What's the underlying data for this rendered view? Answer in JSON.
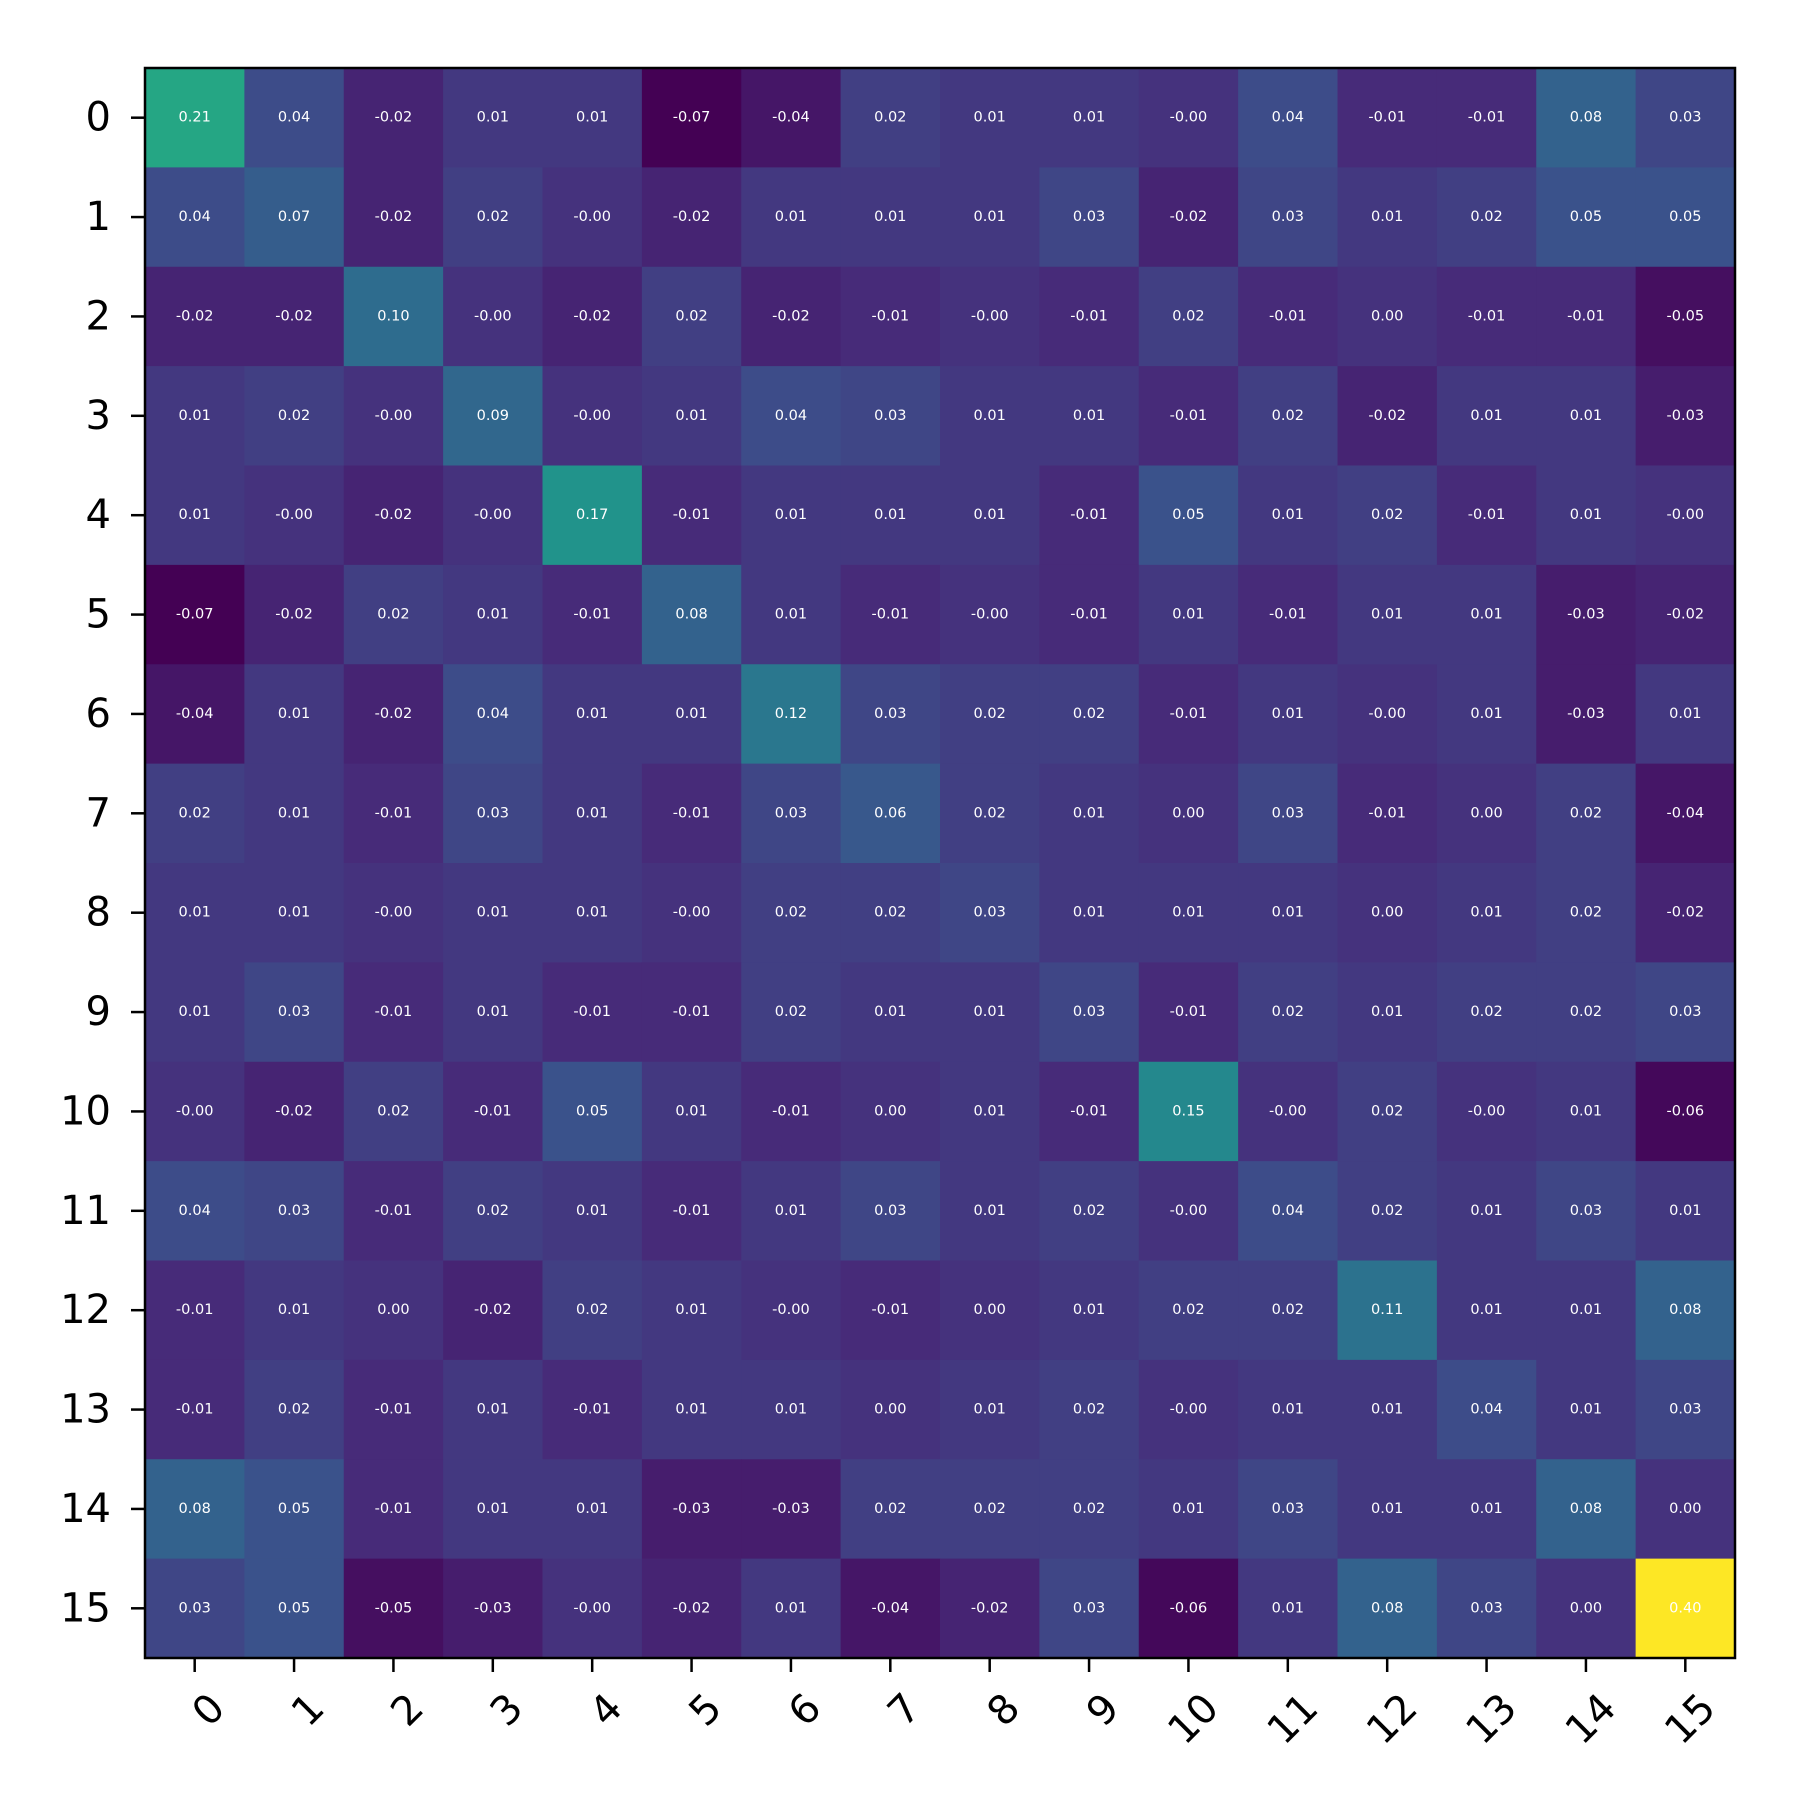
{
  "chart_data": {
    "type": "heatmap",
    "title": "",
    "xlabel": "",
    "ylabel": "",
    "colormap": "viridis",
    "color_range": [
      -0.07,
      0.4
    ],
    "x_tick_labels": [
      "0",
      "1",
      "2",
      "3",
      "4",
      "5",
      "6",
      "7",
      "8",
      "9",
      "10",
      "11",
      "12",
      "13",
      "14",
      "15"
    ],
    "y_tick_labels": [
      "0",
      "1",
      "2",
      "3",
      "4",
      "5",
      "6",
      "7",
      "8",
      "9",
      "10",
      "11",
      "12",
      "13",
      "14",
      "15"
    ],
    "x_tick_rotation_deg": 45,
    "cell_label_color": "#ffffff",
    "values": [
      [
        0.21,
        0.04,
        -0.02,
        0.01,
        0.01,
        -0.07,
        -0.04,
        0.02,
        0.01,
        0.01,
        -0.0,
        0.04,
        -0.01,
        -0.01,
        0.08,
        0.03
      ],
      [
        0.04,
        0.07,
        -0.02,
        0.02,
        -0.0,
        -0.02,
        0.01,
        0.01,
        0.01,
        0.03,
        -0.02,
        0.03,
        0.01,
        0.02,
        0.05,
        0.05
      ],
      [
        -0.02,
        -0.02,
        0.1,
        -0.0,
        -0.02,
        0.02,
        -0.02,
        -0.01,
        -0.0,
        -0.01,
        0.02,
        -0.01,
        0.0,
        -0.01,
        -0.01,
        -0.05
      ],
      [
        0.01,
        0.02,
        -0.0,
        0.09,
        -0.0,
        0.01,
        0.04,
        0.03,
        0.01,
        0.01,
        -0.01,
        0.02,
        -0.02,
        0.01,
        0.01,
        -0.03
      ],
      [
        0.01,
        -0.0,
        -0.02,
        -0.0,
        0.17,
        -0.01,
        0.01,
        0.01,
        0.01,
        -0.01,
        0.05,
        0.01,
        0.02,
        -0.01,
        0.01,
        -0.0
      ],
      [
        -0.07,
        -0.02,
        0.02,
        0.01,
        -0.01,
        0.08,
        0.01,
        -0.01,
        -0.0,
        -0.01,
        0.01,
        -0.01,
        0.01,
        0.01,
        -0.03,
        -0.02
      ],
      [
        -0.04,
        0.01,
        -0.02,
        0.04,
        0.01,
        0.01,
        0.12,
        0.03,
        0.02,
        0.02,
        -0.01,
        0.01,
        -0.0,
        0.01,
        -0.03,
        0.01
      ],
      [
        0.02,
        0.01,
        -0.01,
        0.03,
        0.01,
        -0.01,
        0.03,
        0.06,
        0.02,
        0.01,
        0.0,
        0.03,
        -0.01,
        0.0,
        0.02,
        -0.04
      ],
      [
        0.01,
        0.01,
        -0.0,
        0.01,
        0.01,
        -0.0,
        0.02,
        0.02,
        0.03,
        0.01,
        0.01,
        0.01,
        0.0,
        0.01,
        0.02,
        -0.02
      ],
      [
        0.01,
        0.03,
        -0.01,
        0.01,
        -0.01,
        -0.01,
        0.02,
        0.01,
        0.01,
        0.03,
        -0.01,
        0.02,
        0.01,
        0.02,
        0.02,
        0.03
      ],
      [
        -0.0,
        -0.02,
        0.02,
        -0.01,
        0.05,
        0.01,
        -0.01,
        0.0,
        0.01,
        -0.01,
        0.15,
        -0.0,
        0.02,
        -0.0,
        0.01,
        -0.06
      ],
      [
        0.04,
        0.03,
        -0.01,
        0.02,
        0.01,
        -0.01,
        0.01,
        0.03,
        0.01,
        0.02,
        -0.0,
        0.04,
        0.02,
        0.01,
        0.03,
        0.01
      ],
      [
        -0.01,
        0.01,
        0.0,
        -0.02,
        0.02,
        0.01,
        -0.0,
        -0.01,
        0.0,
        0.01,
        0.02,
        0.02,
        0.11,
        0.01,
        0.01,
        0.08
      ],
      [
        -0.01,
        0.02,
        -0.01,
        0.01,
        -0.01,
        0.01,
        0.01,
        0.0,
        0.01,
        0.02,
        -0.0,
        0.01,
        0.01,
        0.04,
        0.01,
        0.03
      ],
      [
        0.08,
        0.05,
        -0.01,
        0.01,
        0.01,
        -0.03,
        -0.03,
        0.02,
        0.02,
        0.02,
        0.01,
        0.03,
        0.01,
        0.01,
        0.08,
        0.0
      ],
      [
        0.03,
        0.05,
        -0.05,
        -0.03,
        -0.0,
        -0.02,
        0.01,
        -0.04,
        -0.02,
        0.03,
        -0.06,
        0.01,
        0.08,
        0.03,
        0.0,
        0.4
      ]
    ]
  }
}
